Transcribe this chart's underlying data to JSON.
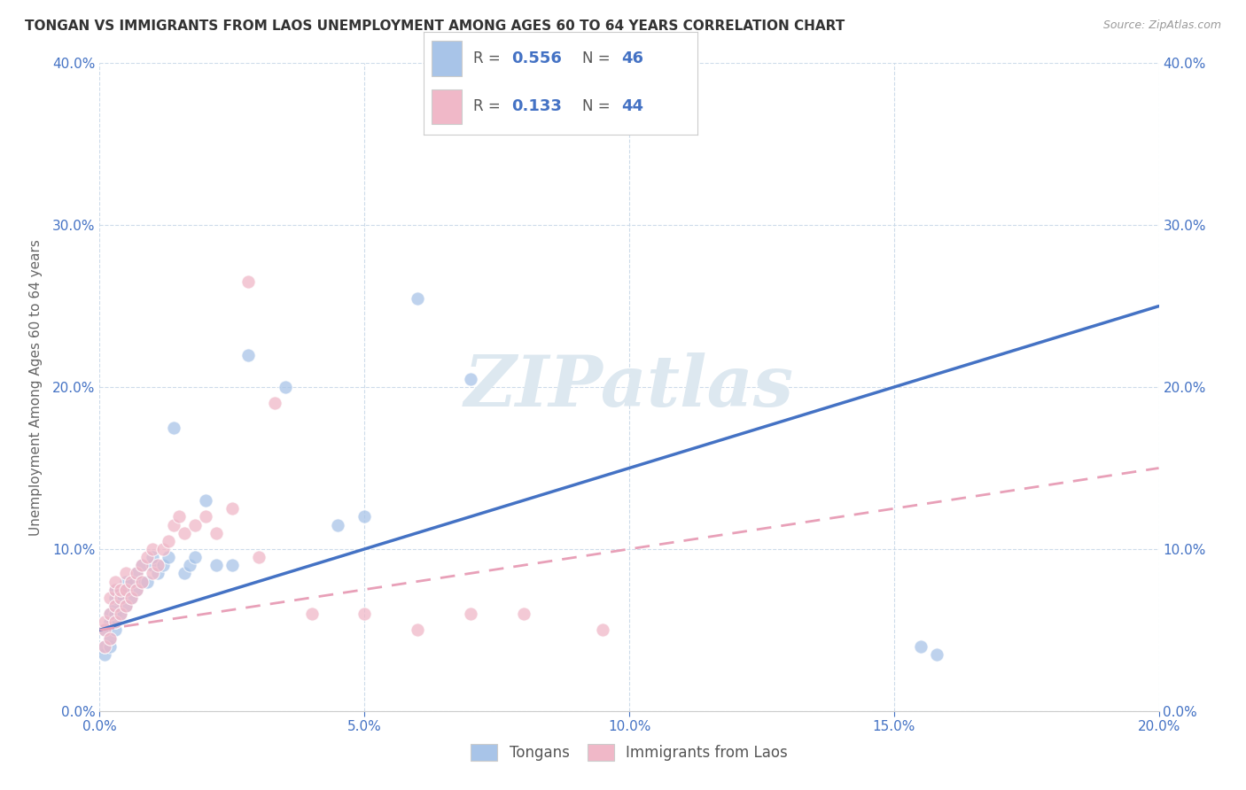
{
  "title": "TONGAN VS IMMIGRANTS FROM LAOS UNEMPLOYMENT AMONG AGES 60 TO 64 YEARS CORRELATION CHART",
  "source": "Source: ZipAtlas.com",
  "ylabel": "Unemployment Among Ages 60 to 64 years",
  "xlim": [
    0.0,
    0.2
  ],
  "ylim": [
    0.0,
    0.4
  ],
  "tonga_scatter_color": "#a8c4e8",
  "laos_scatter_color": "#f0b8c8",
  "tonga_line_color": "#4472c4",
  "laos_line_color": "#e8a0b8",
  "background_color": "#ffffff",
  "grid_color": "#c8d8e8",
  "watermark_color": "#dde8f0",
  "legend_R1": "0.556",
  "legend_N1": "46",
  "legend_R2": "0.133",
  "legend_N2": "44",
  "accent_color": "#4472c4",
  "tongans_x": [
    0.001,
    0.001,
    0.001,
    0.002,
    0.002,
    0.002,
    0.002,
    0.003,
    0.003,
    0.003,
    0.003,
    0.003,
    0.003,
    0.004,
    0.004,
    0.004,
    0.005,
    0.005,
    0.005,
    0.006,
    0.006,
    0.007,
    0.007,
    0.008,
    0.008,
    0.009,
    0.01,
    0.01,
    0.011,
    0.012,
    0.013,
    0.014,
    0.016,
    0.017,
    0.018,
    0.02,
    0.022,
    0.025,
    0.028,
    0.035,
    0.045,
    0.05,
    0.06,
    0.07,
    0.155,
    0.158
  ],
  "tongans_y": [
    0.035,
    0.04,
    0.05,
    0.04,
    0.045,
    0.055,
    0.06,
    0.05,
    0.055,
    0.06,
    0.065,
    0.07,
    0.075,
    0.06,
    0.07,
    0.075,
    0.065,
    0.075,
    0.08,
    0.07,
    0.08,
    0.075,
    0.085,
    0.08,
    0.09,
    0.08,
    0.09,
    0.095,
    0.085,
    0.09,
    0.095,
    0.175,
    0.085,
    0.09,
    0.095,
    0.13,
    0.09,
    0.09,
    0.22,
    0.2,
    0.115,
    0.12,
    0.255,
    0.205,
    0.04,
    0.035
  ],
  "laos_x": [
    0.001,
    0.001,
    0.001,
    0.002,
    0.002,
    0.002,
    0.003,
    0.003,
    0.003,
    0.003,
    0.004,
    0.004,
    0.004,
    0.005,
    0.005,
    0.005,
    0.006,
    0.006,
    0.007,
    0.007,
    0.008,
    0.008,
    0.009,
    0.01,
    0.01,
    0.011,
    0.012,
    0.013,
    0.014,
    0.015,
    0.016,
    0.018,
    0.02,
    0.022,
    0.025,
    0.028,
    0.03,
    0.033,
    0.04,
    0.05,
    0.06,
    0.07,
    0.08,
    0.095
  ],
  "laos_y": [
    0.04,
    0.05,
    0.055,
    0.045,
    0.06,
    0.07,
    0.055,
    0.065,
    0.075,
    0.08,
    0.06,
    0.07,
    0.075,
    0.065,
    0.075,
    0.085,
    0.07,
    0.08,
    0.075,
    0.085,
    0.08,
    0.09,
    0.095,
    0.085,
    0.1,
    0.09,
    0.1,
    0.105,
    0.115,
    0.12,
    0.11,
    0.115,
    0.12,
    0.11,
    0.125,
    0.265,
    0.095,
    0.19,
    0.06,
    0.06,
    0.05,
    0.06,
    0.06,
    0.05
  ],
  "tonga_line_x": [
    0.0,
    0.2
  ],
  "tonga_line_y": [
    0.05,
    0.25
  ],
  "laos_line_x": [
    0.0,
    0.2
  ],
  "laos_line_y": [
    0.05,
    0.15
  ]
}
